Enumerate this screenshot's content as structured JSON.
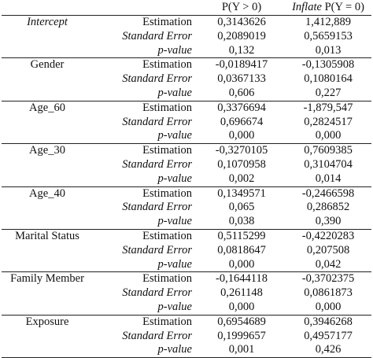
{
  "header": {
    "col_variable": "",
    "col_statistic": "",
    "col_positive": "P(Y > 0)",
    "col_inflate_italic": "Inflate",
    "col_inflate_rest": " P(Y = 0)"
  },
  "groups": [
    {
      "variable": "Intercept",
      "italic": true,
      "rows": [
        {
          "stat": "Estimation",
          "stat_italic": false,
          "p": "0,3143626",
          "i": "1,412,889"
        },
        {
          "stat": "Standard Error",
          "stat_italic": true,
          "p": "0,2089019",
          "i": "0,5659153"
        },
        {
          "stat": "p-value",
          "stat_italic": true,
          "p": "0,132",
          "i": "0,013"
        }
      ]
    },
    {
      "variable": "Gender",
      "italic": false,
      "rows": [
        {
          "stat": "Estimation",
          "stat_italic": false,
          "p": "-0,0189417",
          "i": "-0,1305908"
        },
        {
          "stat": "Standard Error",
          "stat_italic": true,
          "p": "0,0367133",
          "i": "0,1080164"
        },
        {
          "stat": "p-value",
          "stat_italic": true,
          "p": "0,606",
          "i": "0,227"
        }
      ]
    },
    {
      "variable": "Age_60",
      "italic": false,
      "rows": [
        {
          "stat": "Estimation",
          "stat_italic": false,
          "p": "0,3376694",
          "i": "-1,879,547"
        },
        {
          "stat": "Standard Error",
          "stat_italic": true,
          "p": "0,696674",
          "i": "0,2824517"
        },
        {
          "stat": "p-value",
          "stat_italic": true,
          "p": "0,000",
          "i": "0,000"
        }
      ]
    },
    {
      "variable": "Age_30",
      "italic": false,
      "rows": [
        {
          "stat": "Estimation",
          "stat_italic": false,
          "p": "-0,3270105",
          "i": "0,7609385"
        },
        {
          "stat": "Standard Error",
          "stat_italic": true,
          "p": "0,1070958",
          "i": "0,3104704"
        },
        {
          "stat": "p-value",
          "stat_italic": true,
          "p": "0,002",
          "i": "0,014"
        }
      ]
    },
    {
      "variable": "Age_40",
      "italic": false,
      "rows": [
        {
          "stat": "Estimation",
          "stat_italic": false,
          "p": "0,1349571",
          "i": "-0,2466598"
        },
        {
          "stat": "Standard Error",
          "stat_italic": true,
          "p": "0,065",
          "i": "0,286852"
        },
        {
          "stat": "p-value",
          "stat_italic": true,
          "p": "0,038",
          "i": "0,390"
        }
      ]
    },
    {
      "variable": "Marital Status",
      "italic": false,
      "rows": [
        {
          "stat": "Estimation",
          "stat_italic": false,
          "p": "0,5115299",
          "i": "-0,4220283"
        },
        {
          "stat": "Standard Error",
          "stat_italic": true,
          "p": "0,0818647",
          "i": "0,207508"
        },
        {
          "stat": "p-value",
          "stat_italic": true,
          "p": "0,000",
          "i": "0,042"
        }
      ]
    },
    {
      "variable": "Family Member",
      "italic": false,
      "rows": [
        {
          "stat": "Estimation",
          "stat_italic": false,
          "p": "-0,1644118",
          "i": "-0,3702375"
        },
        {
          "stat": "Standard Error",
          "stat_italic": true,
          "p": "0,261148",
          "i": "0,0861873"
        },
        {
          "stat": "p-value",
          "stat_italic": true,
          "p": "0,000",
          "i": "0,000"
        }
      ]
    },
    {
      "variable": "Exposure",
      "italic": false,
      "rows": [
        {
          "stat": "Estimation",
          "stat_italic": false,
          "p": "0,6954689",
          "i": "0,3946268"
        },
        {
          "stat": "Standard Error",
          "stat_italic": true,
          "p": "0,1999657",
          "i": "0,4957177"
        },
        {
          "stat": "p-value",
          "stat_italic": true,
          "p": "0,001",
          "i": "0,426"
        }
      ]
    }
  ]
}
